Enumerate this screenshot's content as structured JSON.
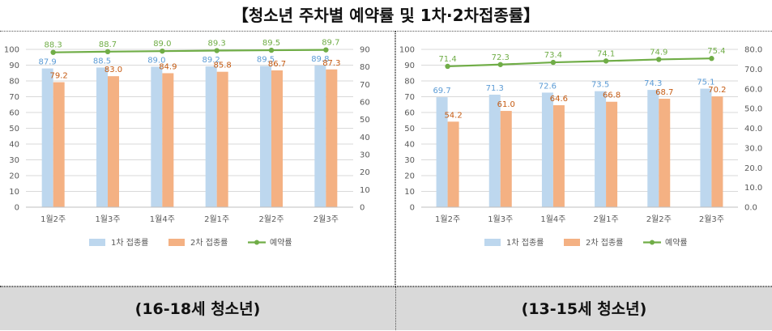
{
  "title": "【청소년 주차별 예약률 및 1차·2차접종률】",
  "colors": {
    "dose1": "#BDD7EE",
    "dose2": "#F4B183",
    "reserve": "#70AD47",
    "dose1_label": "#5B9BD5",
    "dose2_label": "#C55A11"
  },
  "chart_data": [
    {
      "type": "bar",
      "caption": "(16-18세 청소년)",
      "categories": [
        "1월2주",
        "1월3주",
        "1월4주",
        "2월1주",
        "2월2주",
        "2월3주"
      ],
      "series": [
        {
          "name": "1차 접종률",
          "type": "bar",
          "axis": "left",
          "values": [
            87.9,
            88.5,
            89.0,
            89.2,
            89.5,
            89.8
          ]
        },
        {
          "name": "2차 접종률",
          "type": "bar",
          "axis": "left",
          "values": [
            79.2,
            83.0,
            84.9,
            85.8,
            86.7,
            87.3
          ]
        },
        {
          "name": "예약률",
          "type": "line",
          "axis": "right",
          "values": [
            88.3,
            88.7,
            89.0,
            89.3,
            89.5,
            89.7
          ]
        }
      ],
      "ylim_left": [
        0,
        100
      ],
      "yticks_left": [
        "0",
        "10",
        "20",
        "30",
        "40",
        "50",
        "60",
        "70",
        "80",
        "90",
        "100"
      ],
      "ylim_right": [
        0,
        90
      ],
      "yticks_right": [
        "0",
        "10",
        "20",
        "30",
        "40",
        "50",
        "60",
        "70",
        "80",
        "90"
      ],
      "legend": "bottom"
    },
    {
      "type": "bar",
      "caption": "(13-15세 청소년)",
      "categories": [
        "1월2주",
        "1월3주",
        "1월4주",
        "2월1주",
        "2월2주",
        "2월3주"
      ],
      "series": [
        {
          "name": "1차 접종률",
          "type": "bar",
          "axis": "left",
          "values": [
            69.7,
            71.3,
            72.6,
            73.5,
            74.3,
            75.1
          ]
        },
        {
          "name": "2차 접종률",
          "type": "bar",
          "axis": "left",
          "values": [
            54.2,
            61.0,
            64.6,
            66.8,
            68.7,
            70.2
          ]
        },
        {
          "name": "예약률",
          "type": "line",
          "axis": "right",
          "values": [
            71.4,
            72.3,
            73.4,
            74.1,
            74.9,
            75.4
          ]
        }
      ],
      "ylim_left": [
        0,
        100
      ],
      "yticks_left": [
        "0",
        "10",
        "20",
        "30",
        "40",
        "50",
        "60",
        "70",
        "80",
        "90",
        "100"
      ],
      "ylim_right": [
        0,
        80
      ],
      "yticks_right": [
        "0.0",
        "10.0",
        "20.0",
        "30.0",
        "40.0",
        "50.0",
        "60.0",
        "70.0",
        "80.0"
      ],
      "legend": "bottom"
    }
  ]
}
